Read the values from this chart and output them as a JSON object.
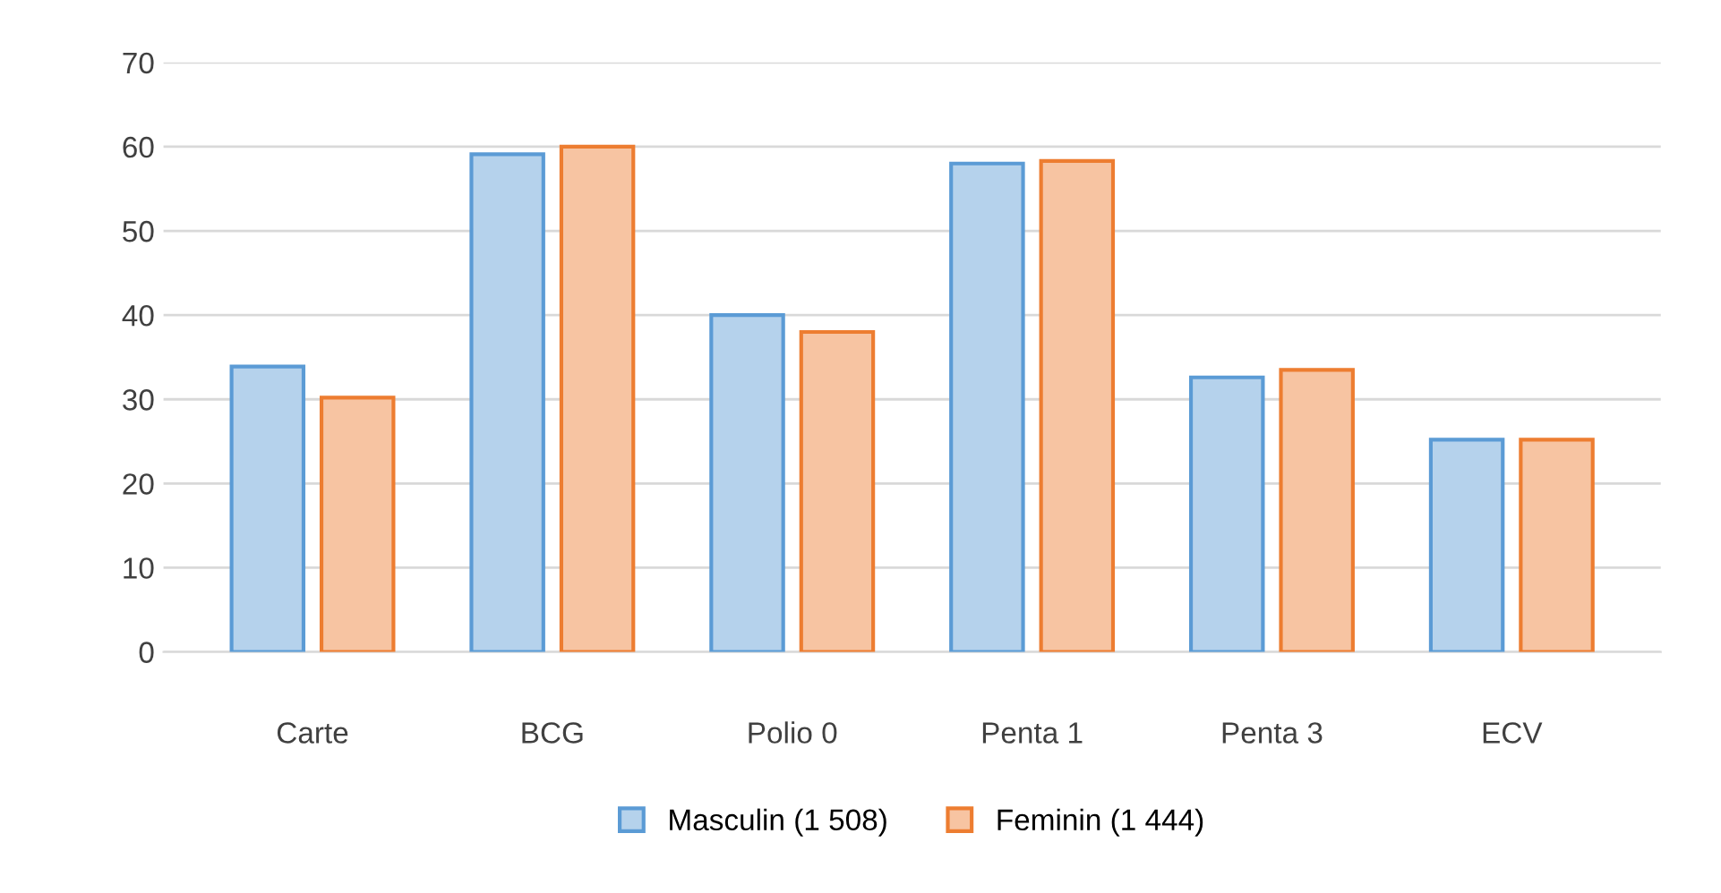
{
  "chart_data": {
    "type": "bar",
    "categories": [
      "Carte",
      "BCG",
      "Polio 0",
      "Penta 1",
      "Penta 3",
      "ECV"
    ],
    "series": [
      {
        "name": "Masculin (1 508)",
        "color": "#5b9bd5",
        "values": [
          33.9,
          59.1,
          40,
          58,
          32.6,
          25.2
        ]
      },
      {
        "name": "Feminin (1 444)",
        "color": "#ed7d31",
        "values": [
          30.2,
          60,
          38,
          58.3,
          33.5,
          25.2
        ]
      }
    ],
    "ylim": [
      0,
      70
    ],
    "yticks": [
      0,
      10,
      20,
      30,
      40,
      50,
      60,
      70
    ],
    "grid": "y",
    "legend": "bottom"
  }
}
